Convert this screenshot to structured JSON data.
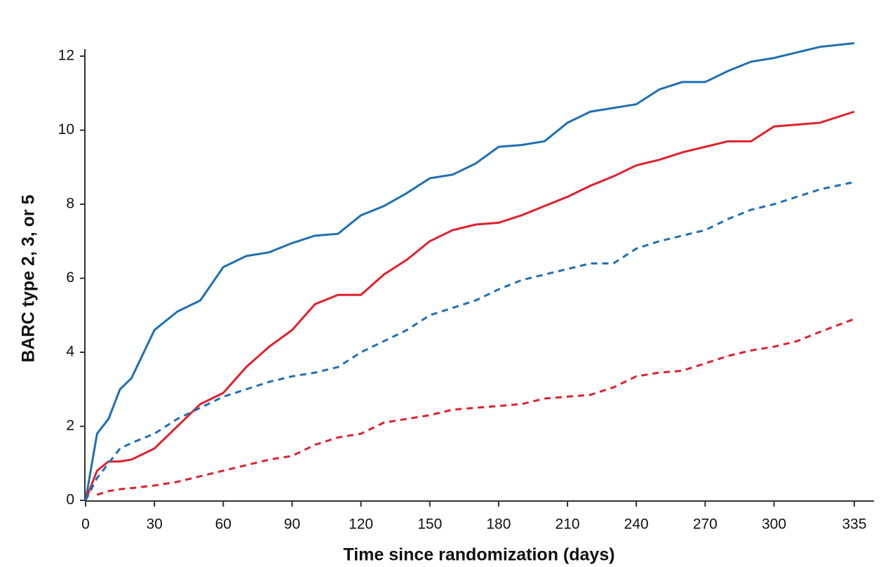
{
  "chart_data": {
    "type": "line",
    "xlabel": "Time since randomization (days)",
    "ylabel": "BARC type 2, 3, or 5",
    "x": [
      0,
      5,
      10,
      15,
      20,
      30,
      40,
      50,
      60,
      70,
      80,
      90,
      100,
      110,
      120,
      130,
      140,
      150,
      160,
      170,
      180,
      190,
      200,
      210,
      220,
      230,
      240,
      250,
      260,
      270,
      280,
      290,
      300,
      310,
      320,
      335
    ],
    "series": [
      {
        "color": "#1f6fb4",
        "dashed": false,
        "values": [
          0,
          1.8,
          2.2,
          3.0,
          3.3,
          4.6,
          5.1,
          5.4,
          6.3,
          6.6,
          6.7,
          6.95,
          7.15,
          7.2,
          7.7,
          7.95,
          8.3,
          8.7,
          8.8,
          9.1,
          9.55,
          9.6,
          9.7,
          10.2,
          10.5,
          10.6,
          10.7,
          11.1,
          11.3,
          11.3,
          11.6,
          11.85,
          11.95,
          12.1,
          12.25,
          12.35
        ]
      },
      {
        "color": "#e0202c",
        "dashed": false,
        "values": [
          0,
          0.8,
          1.05,
          1.05,
          1.1,
          1.4,
          2.0,
          2.6,
          2.9,
          3.6,
          4.15,
          4.6,
          5.3,
          5.55,
          5.55,
          6.1,
          6.5,
          7.0,
          7.3,
          7.45,
          7.5,
          7.7,
          7.95,
          8.2,
          8.5,
          8.75,
          9.05,
          9.2,
          9.4,
          9.55,
          9.7,
          9.7,
          10.1,
          10.15,
          10.2,
          10.5
        ]
      },
      {
        "color": "#1f6fb4",
        "dashed": true,
        "values": [
          0,
          0.6,
          1.0,
          1.4,
          1.55,
          1.8,
          2.2,
          2.5,
          2.8,
          3.0,
          3.2,
          3.35,
          3.45,
          3.6,
          4.0,
          4.3,
          4.6,
          5.0,
          5.2,
          5.4,
          5.7,
          5.95,
          6.1,
          6.25,
          6.4,
          6.4,
          6.8,
          7.0,
          7.15,
          7.3,
          7.6,
          7.85,
          8.0,
          8.2,
          8.4,
          8.6
        ]
      },
      {
        "color": "#e0202c",
        "dashed": true,
        "values": [
          null,
          0.15,
          0.25,
          0.3,
          0.33,
          0.4,
          0.5,
          0.65,
          0.8,
          0.95,
          1.1,
          1.2,
          1.5,
          1.7,
          1.8,
          2.1,
          2.2,
          2.3,
          2.45,
          2.5,
          2.55,
          2.6,
          2.75,
          2.8,
          2.85,
          3.05,
          3.35,
          3.45,
          3.5,
          3.7,
          3.9,
          4.05,
          4.15,
          4.3,
          4.55,
          4.9
        ]
      }
    ],
    "xlim": [
      0,
      335
    ],
    "xticks": [
      0,
      30,
      60,
      90,
      120,
      150,
      180,
      210,
      240,
      270,
      300,
      335
    ],
    "ylim": [
      0,
      12
    ],
    "yticks": [
      0,
      2,
      4,
      6,
      8,
      10,
      12
    ]
  }
}
